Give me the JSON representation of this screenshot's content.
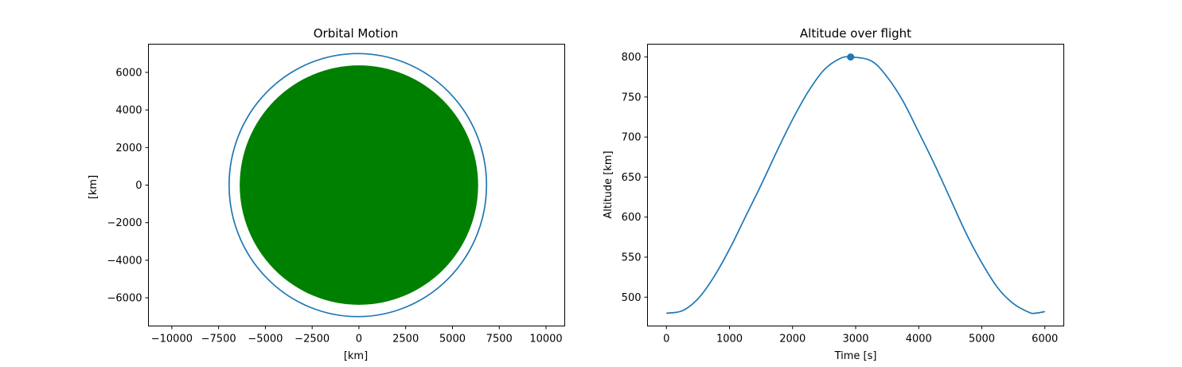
{
  "chart_data": [
    {
      "type": "line",
      "title": "Orbital Motion",
      "xlabel": "[km]",
      "ylabel": "[km]",
      "xlim": [
        -11250,
        11000
      ],
      "ylim": [
        -7500,
        7500
      ],
      "xticks": [
        -10000,
        -7500,
        -5000,
        -2500,
        0,
        2500,
        5000,
        7500,
        10000
      ],
      "xtick_labels": [
        "−10000",
        "−7500",
        "−5000",
        "−2500",
        "0",
        "2500",
        "5000",
        "7500",
        "10000"
      ],
      "yticks": [
        -6000,
        -4000,
        -2000,
        0,
        2000,
        4000,
        6000
      ],
      "ytick_labels": [
        "−6000",
        "−4000",
        "−2000",
        "0",
        "2000",
        "4000",
        "6000"
      ],
      "grid": false,
      "earth": {
        "center": [
          0,
          0
        ],
        "radius": 6371,
        "color": "#008000"
      },
      "orbit": {
        "center": [
          -60,
          0
        ],
        "rx": 6880,
        "ry": 7000,
        "color": "#1f77b4"
      }
    },
    {
      "type": "line",
      "title": "Altitude over flight",
      "xlabel": "Time [s]",
      "ylabel": "Altitude [km]",
      "xlim": [
        -300,
        6300
      ],
      "ylim": [
        464,
        816
      ],
      "xticks": [
        0,
        1000,
        2000,
        3000,
        4000,
        5000,
        6000
      ],
      "xtick_labels": [
        "0",
        "1000",
        "2000",
        "3000",
        "4000",
        "5000",
        "6000"
      ],
      "yticks": [
        500,
        550,
        600,
        650,
        700,
        750,
        800
      ],
      "ytick_labels": [
        "500",
        "550",
        "600",
        "650",
        "700",
        "750",
        "800"
      ],
      "grid": false,
      "series": [
        {
          "color": "#1f77b4",
          "x": [
            0,
            250,
            500,
            750,
            1000,
            1250,
            1500,
            1750,
            2000,
            2250,
            2500,
            2750,
            2920,
            3250,
            3500,
            3750,
            4000,
            4250,
            4500,
            4750,
            5000,
            5250,
            5500,
            5750,
            5850,
            6000
          ],
          "y": [
            480,
            483,
            498,
            525,
            560,
            600,
            640,
            682,
            722,
            757,
            784,
            798,
            800,
            795,
            775,
            745,
            706,
            666,
            623,
            580,
            543,
            512,
            492,
            481,
            480,
            482
          ]
        }
      ],
      "marker": {
        "x": 2920,
        "y": 800,
        "color": "#1f77b4"
      }
    }
  ]
}
